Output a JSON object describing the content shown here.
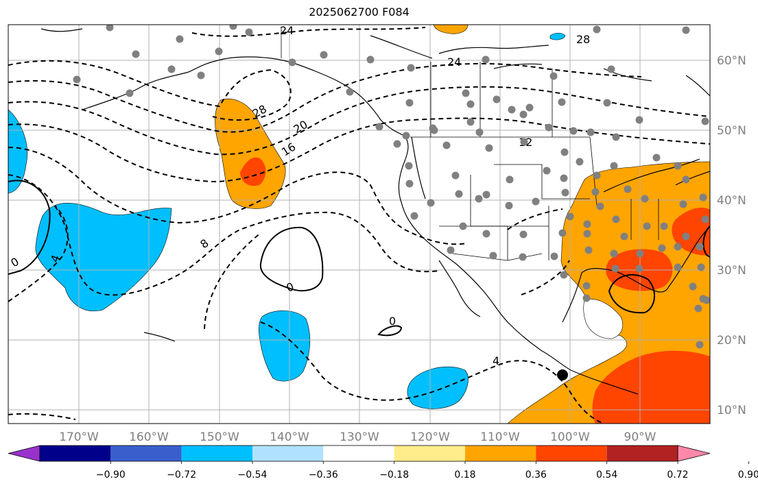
{
  "title": "2025062700 F084",
  "map": {
    "lon_ticks": [
      "170°W",
      "160°W",
      "150°W",
      "140°W",
      "130°W",
      "120°W",
      "110°W",
      "100°W",
      "90°W"
    ],
    "lat_ticks": [
      "60°N",
      "50°N",
      "40°N",
      "30°N",
      "20°N",
      "10°N"
    ],
    "contour_labels": [
      "24",
      "28",
      "24",
      "28",
      "20",
      "16",
      "12",
      "8",
      "4",
      "0",
      "0",
      "0",
      "4"
    ],
    "colors": {
      "land": "#ffffff",
      "ocean": "#ffffff",
      "grid": "#b0b0b0",
      "stations": "#808080"
    }
  },
  "colorbar": {
    "ticks": [
      "−0.90",
      "−0.72",
      "−0.54",
      "−0.36",
      "−0.18",
      "0.18",
      "0.36",
      "0.54",
      "0.72",
      "0.90"
    ],
    "colors": [
      "#9932cc",
      "#00008b",
      "#3a5fcd",
      "#00bfff",
      "#b0e2ff",
      "#ffffff",
      "#ffec8b",
      "#ffa500",
      "#ff4500",
      "#b22222",
      "#ff88aa"
    ]
  }
}
